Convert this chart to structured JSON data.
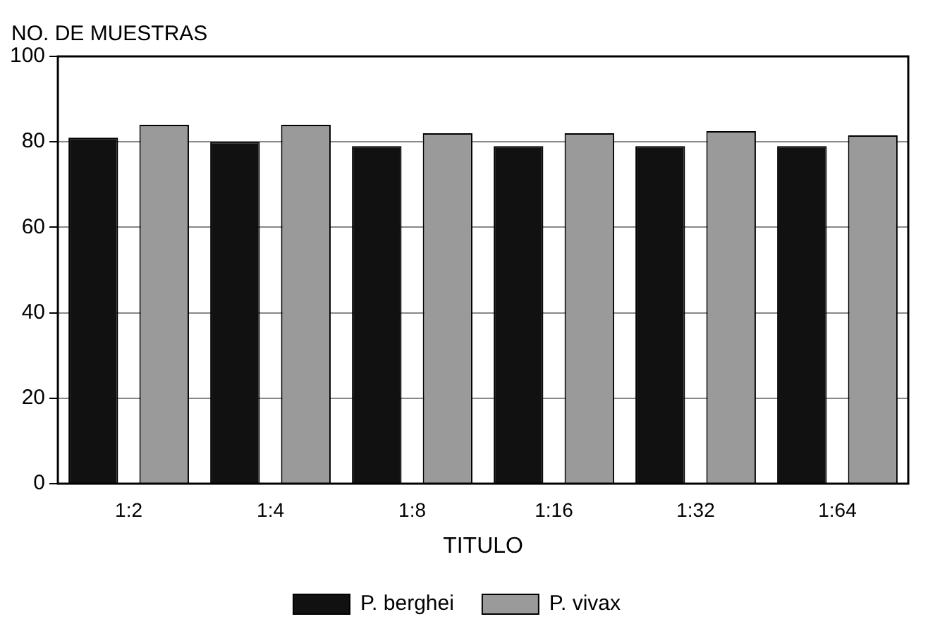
{
  "chart_data": {
    "type": "bar",
    "ylabel": "NO. DE MUESTRAS",
    "xlabel": "TITULO",
    "categories": [
      "1:2",
      "1:4",
      "1:8",
      "1:16",
      "1:32",
      "1:64"
    ],
    "series": [
      {
        "name": "P. berghei",
        "color": "#111111",
        "values": [
          81,
          80,
          79,
          79,
          79,
          79
        ]
      },
      {
        "name": "P. vivax",
        "color": "#9a9a9a",
        "values": [
          84,
          84,
          82,
          82,
          82.5,
          81.5
        ]
      }
    ],
    "ylim": [
      0,
      100
    ],
    "yticks": [
      0,
      20,
      40,
      60,
      80,
      100
    ],
    "grid": "y",
    "legend": "bottom"
  }
}
